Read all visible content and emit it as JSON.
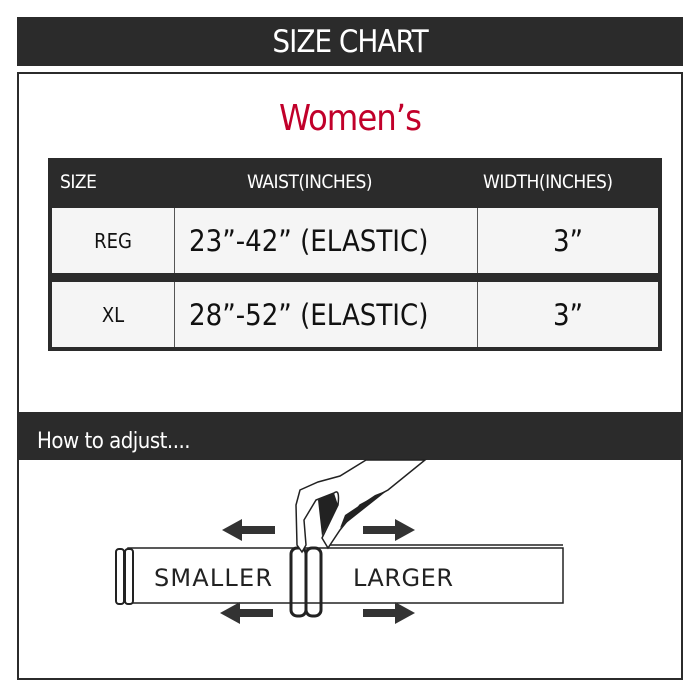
{
  "header": {
    "title": "SIZE CHART"
  },
  "section_title": "Women’s",
  "colors": {
    "dark": "#2b2b2b",
    "accent": "#c1002a"
  },
  "table": {
    "headers": [
      "SIZE",
      "WAIST(INCHES)",
      "WIDTH(INCHES)"
    ],
    "rows": [
      {
        "size": "REG",
        "waist": "23”-42” (ELASTIC)",
        "width": "3”"
      },
      {
        "size": "XL",
        "waist": "28”-52” (ELASTIC)",
        "width": "3”"
      }
    ]
  },
  "adjust": {
    "title": "How to adjust....",
    "smaller": "SMALLER",
    "larger": "LARGER"
  }
}
